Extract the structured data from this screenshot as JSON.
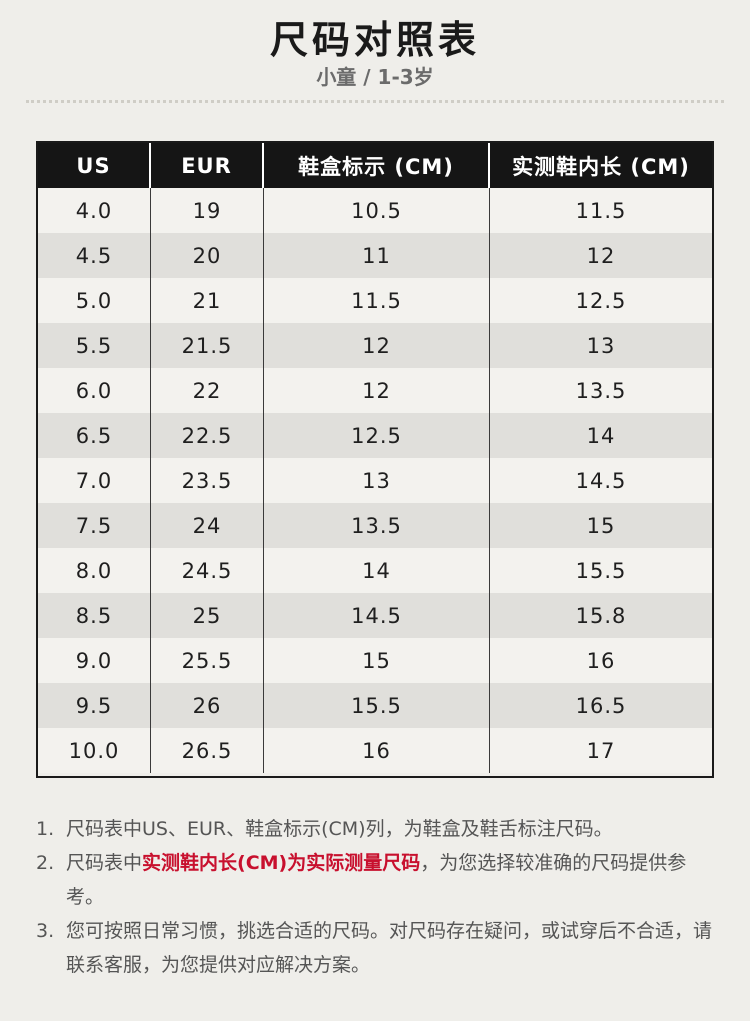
{
  "header": {
    "title": "尺码对照表",
    "subtitle": "小童 / 1-3岁"
  },
  "table": {
    "columns": [
      "US",
      "EUR",
      "鞋盒标示 (CM)",
      "实测鞋内长 (CM)"
    ],
    "rows": [
      [
        "4.0",
        "19",
        "10.5",
        "11.5"
      ],
      [
        "4.5",
        "20",
        "11",
        "12"
      ],
      [
        "5.0",
        "21",
        "11.5",
        "12.5"
      ],
      [
        "5.5",
        "21.5",
        "12",
        "13"
      ],
      [
        "6.0",
        "22",
        "12",
        "13.5"
      ],
      [
        "6.5",
        "22.5",
        "12.5",
        "14"
      ],
      [
        "7.0",
        "23.5",
        "13",
        "14.5"
      ],
      [
        "7.5",
        "24",
        "13.5",
        "15"
      ],
      [
        "8.0",
        "24.5",
        "14",
        "15.5"
      ],
      [
        "8.5",
        "25",
        "14.5",
        "15.8"
      ],
      [
        "9.0",
        "25.5",
        "15",
        "16"
      ],
      [
        "9.5",
        "26",
        "15.5",
        "16.5"
      ],
      [
        "10.0",
        "26.5",
        "16",
        "17"
      ]
    ]
  },
  "notes": [
    {
      "num": "1.",
      "parts": [
        {
          "text": "尺码表中US、EUR、鞋盒标示(CM)列，为鞋盒及鞋舌标注尺码。",
          "highlight": false
        }
      ]
    },
    {
      "num": "2.",
      "parts": [
        {
          "text": "尺码表中",
          "highlight": false
        },
        {
          "text": "实测鞋内长(CM)为实际测量尺码",
          "highlight": true
        },
        {
          "text": "，为您选择较准确的尺码提供参考。",
          "highlight": false
        }
      ]
    },
    {
      "num": "3.",
      "parts": [
        {
          "text": "您可按照日常习惯，挑选合适的尺码。对尺码存在疑问，或试穿后不合适，请联系客服，为您提供对应解决方案。",
          "highlight": false
        }
      ]
    }
  ],
  "colors": {
    "background": "#efeeea",
    "header_bg": "#151515",
    "row_shade": "#e0dfdb",
    "highlight": "#c8102e"
  }
}
